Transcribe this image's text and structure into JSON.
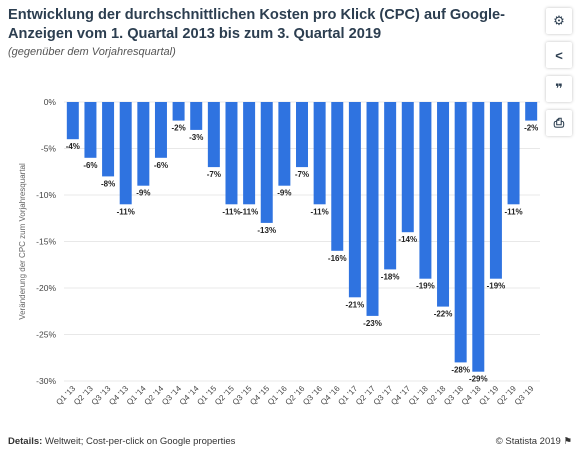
{
  "title": "Entwicklung der durchschnittlichen Kosten pro Klick (CPC) auf Google-Anzeigen vom 1. Quartal 2013 bis zum 3. Quartal 2019",
  "subtitle": "(gegenüber dem Vorjahresquartal)",
  "footer": {
    "details_label": "Details:",
    "details_text": "Weltweit; Cost-per-click on Google properties",
    "copyright": "© Statista 2019"
  },
  "toolbar": {
    "icons": [
      "gear-icon",
      "share-icon",
      "quote-icon",
      "print-icon"
    ],
    "gear_glyph": "⚙",
    "share_glyph": "<",
    "quote_glyph": "❞",
    "print_glyph": "⎙"
  },
  "colors": {
    "bar": "#2f73e0",
    "grid": "#e8e8e8"
  },
  "chart_data": {
    "type": "bar",
    "ylabel": "Veränderung der CPC zum Vorjahresquartal",
    "ylim": [
      -30,
      0
    ],
    "yticks": [
      0,
      -5,
      -10,
      -15,
      -20,
      -25,
      -30
    ],
    "ytick_labels": [
      "0%",
      "-5%",
      "-10%",
      "-15%",
      "-20%",
      "-25%",
      "-30%"
    ],
    "grid": true,
    "categories": [
      "Q1 '13",
      "Q2 '13",
      "Q3 '13",
      "Q4 '13",
      "Q1 '14",
      "Q2 '14",
      "Q3 '14",
      "Q4 '14",
      "Q1 '15",
      "Q2 '15",
      "Q3 '15",
      "Q4 '15",
      "Q1 '16",
      "Q2 '16",
      "Q3 '16",
      "Q4 '16",
      "Q1 '17",
      "Q2 '17",
      "Q3 '17",
      "Q4 '17",
      "Q1 '18",
      "Q2 '18",
      "Q3 '18",
      "Q4 '18",
      "Q1 '19",
      "Q2 '19",
      "Q3 '19"
    ],
    "values": [
      -4,
      -6,
      -8,
      -11,
      -9,
      -6,
      -2,
      -3,
      -7,
      -11,
      -11,
      -13,
      -9,
      -7,
      -11,
      -16,
      -21,
      -23,
      -18,
      -14,
      -19,
      -22,
      -28,
      -29,
      -19,
      -11,
      -2
    ],
    "value_labels": [
      "-4%",
      "-6%",
      "-8%",
      "-11%",
      "-9%",
      "-6%",
      "-2%",
      "-3%",
      "-7%",
      "-11%",
      "-11%",
      "-13%",
      "-9%",
      "-7%",
      "-11%",
      "-16%",
      "-21%",
      "-23%",
      "-18%",
      "-14%",
      "-19%",
      "-22%",
      "-28%",
      "-29%",
      "-19%",
      "-11%",
      "-2%"
    ]
  }
}
